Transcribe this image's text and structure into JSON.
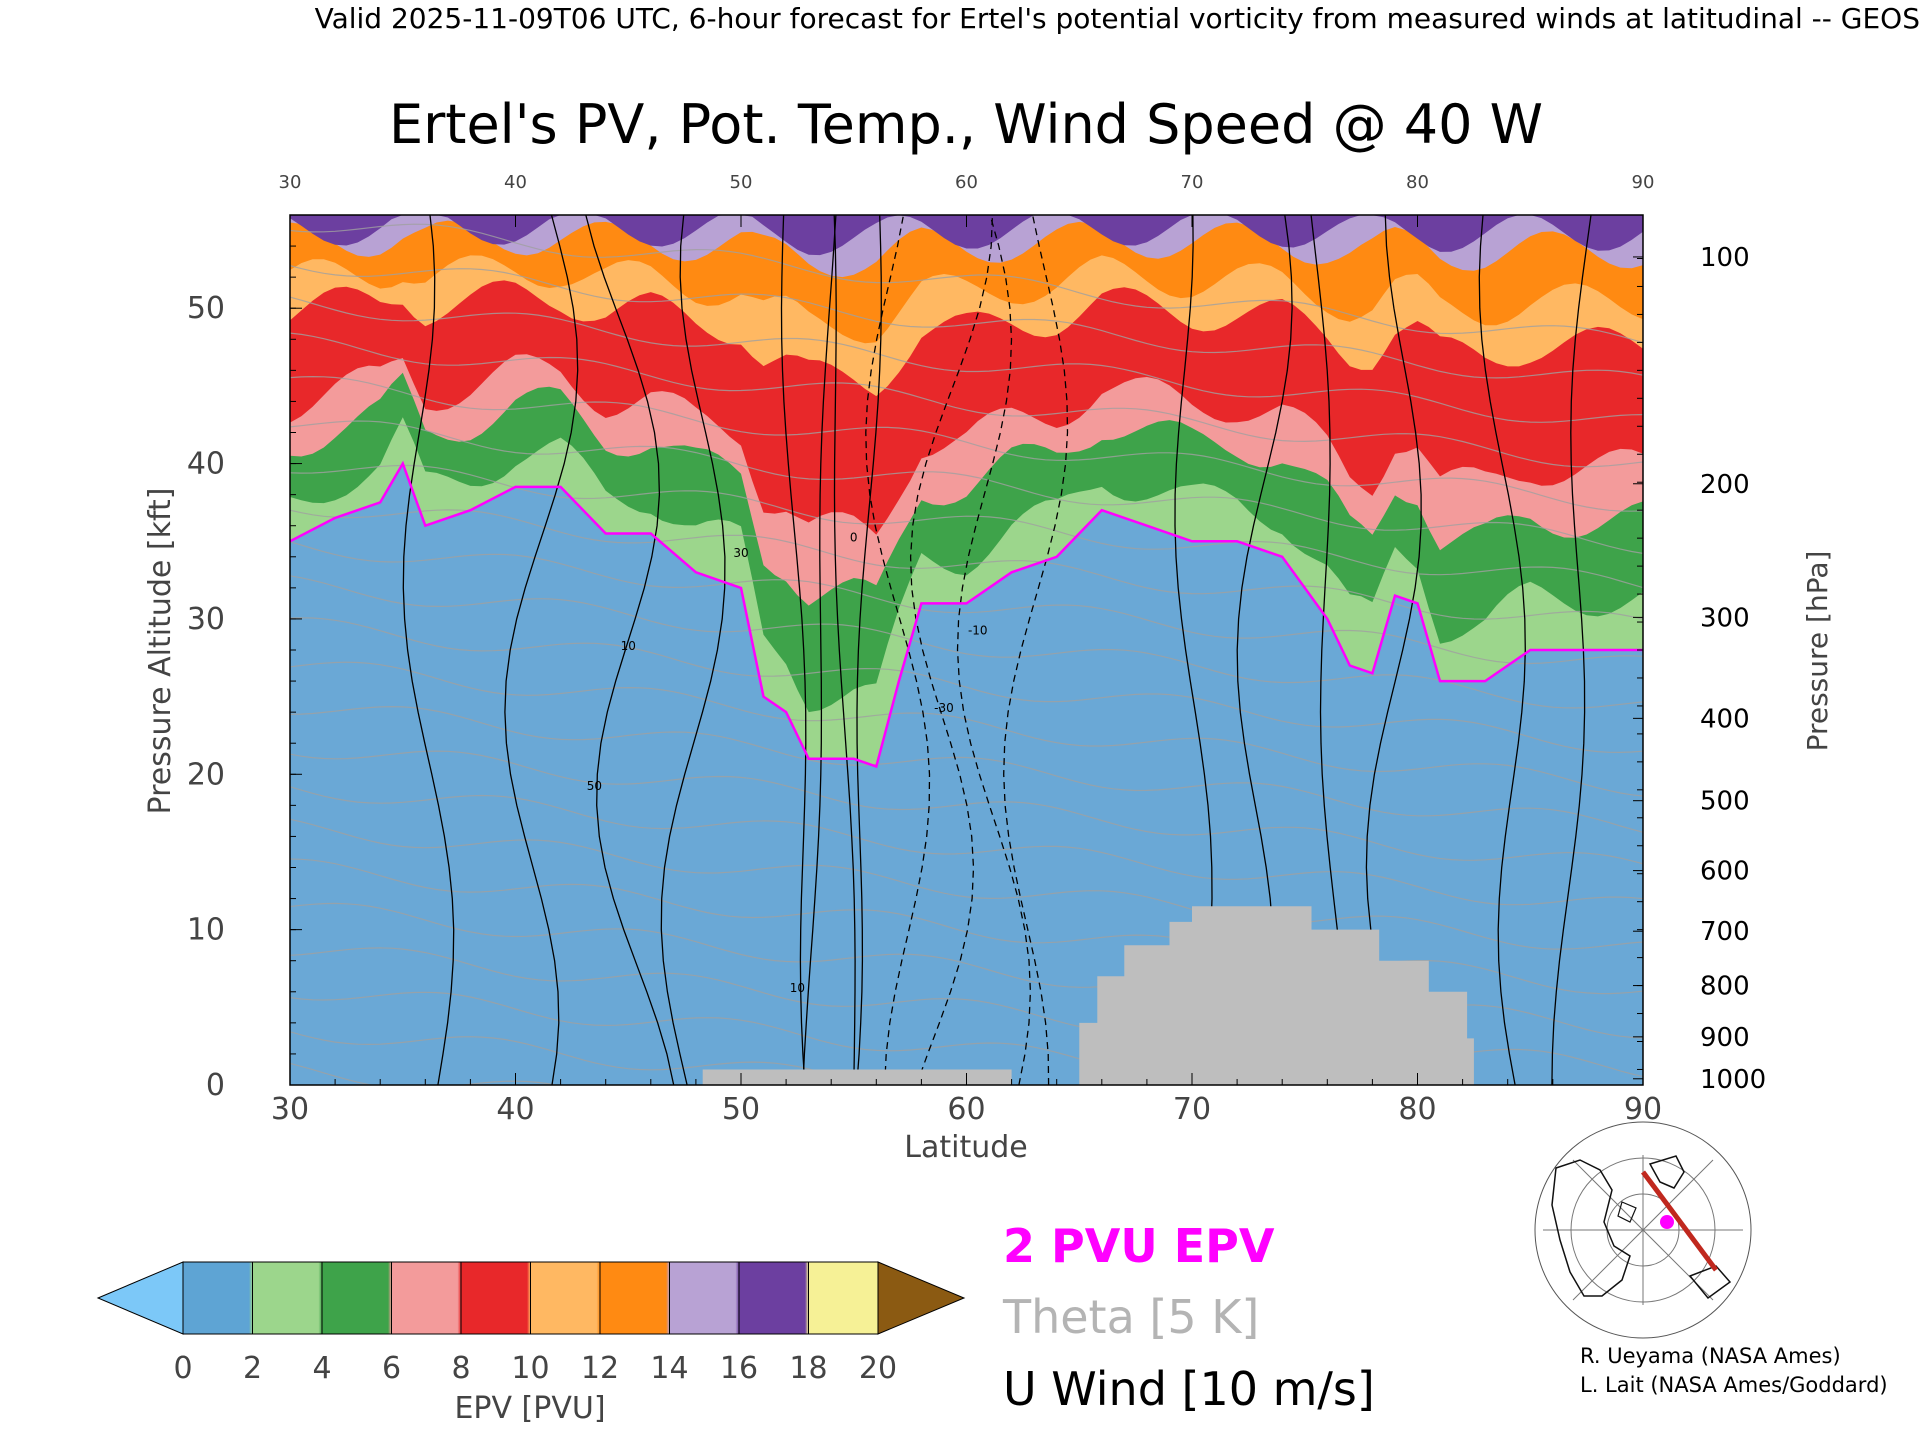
{
  "header": {
    "text": "Valid 2025-11-09T06 UTC, 6-hour forecast for Ertel's potential vorticity from measured winds at latitudinal -- GEOS"
  },
  "chart_data": {
    "type": "heatmap",
    "title": "Ertel's PV, Pot. Temp., Wind Speed @ 40 W",
    "xlabel": "Latitude",
    "ylabel": "Pressure Altitude [kft]",
    "y2label": "Pressure [hPa]",
    "xlim": [
      30,
      90
    ],
    "ylim": [
      0,
      56
    ],
    "x_ticks": [
      "30",
      "40",
      "50",
      "60",
      "70",
      "80",
      "90"
    ],
    "y_ticks": [
      "0",
      "10",
      "20",
      "30",
      "40",
      "50"
    ],
    "pressure_ticks": [
      {
        "hPa": "100",
        "kft": 53.3
      },
      {
        "hPa": "200",
        "kft": 38.7
      },
      {
        "hPa": "300",
        "kft": 30.1
      },
      {
        "hPa": "400",
        "kft": 23.6
      },
      {
        "hPa": "500",
        "kft": 18.3
      },
      {
        "hPa": "600",
        "kft": 13.8
      },
      {
        "hPa": "700",
        "kft": 9.9
      },
      {
        "hPa": "800",
        "kft": 6.4
      },
      {
        "hPa": "900",
        "kft": 3.1
      },
      {
        "hPa": "1000",
        "kft": 0.4
      }
    ],
    "tropopause_2pvu_kft": [
      [
        30,
        35
      ],
      [
        32,
        36.5
      ],
      [
        34,
        37.5
      ],
      [
        35,
        40
      ],
      [
        36,
        36
      ],
      [
        38,
        37
      ],
      [
        40,
        38.5
      ],
      [
        42,
        38.5
      ],
      [
        44,
        35.5
      ],
      [
        46,
        35.5
      ],
      [
        48,
        33
      ],
      [
        50,
        32
      ],
      [
        51,
        25
      ],
      [
        52,
        24
      ],
      [
        53,
        21
      ],
      [
        55,
        21
      ],
      [
        56,
        20.5
      ],
      [
        57,
        26
      ],
      [
        58,
        31
      ],
      [
        60,
        31
      ],
      [
        62,
        33
      ],
      [
        64,
        34
      ],
      [
        66,
        37
      ],
      [
        68,
        36
      ],
      [
        70,
        35
      ],
      [
        72,
        35
      ],
      [
        74,
        34
      ],
      [
        76,
        30
      ],
      [
        77,
        27
      ],
      [
        78,
        26.5
      ],
      [
        79,
        31.5
      ],
      [
        80,
        31
      ],
      [
        81,
        26
      ],
      [
        83,
        26
      ],
      [
        85,
        28
      ],
      [
        90,
        28
      ]
    ],
    "terrain_mask_kft": [
      [
        48.3,
        0
      ],
      [
        48.3,
        1
      ],
      [
        62,
        1
      ],
      [
        62,
        0
      ],
      [
        65,
        0
      ],
      [
        65,
        4
      ],
      [
        65.8,
        4
      ],
      [
        65.8,
        7
      ],
      [
        67,
        7
      ],
      [
        67,
        9
      ],
      [
        69,
        9
      ],
      [
        69,
        10.5
      ],
      [
        70,
        10.5
      ],
      [
        70,
        11.5
      ],
      [
        75.3,
        11.5
      ],
      [
        75.3,
        10
      ],
      [
        78.3,
        10
      ],
      [
        78.3,
        8
      ],
      [
        80.5,
        8
      ],
      [
        80.5,
        6
      ],
      [
        82.2,
        6
      ],
      [
        82.2,
        3
      ],
      [
        82.5,
        3
      ],
      [
        82.5,
        0
      ]
    ],
    "colorbar": {
      "label": "EPV [PVU]",
      "ticks": [
        "0",
        "2",
        "4",
        "6",
        "8",
        "10",
        "12",
        "14",
        "16",
        "18",
        "20"
      ],
      "colors": [
        "#5ea4d4",
        "#9cd68c",
        "#3ea34a",
        "#f39b9b",
        "#e8282a",
        "#ffb862",
        "#ff8a12",
        "#b8a2d4",
        "#6c3fa0",
        "#f6f196"
      ],
      "under_color": "#7cc8f8",
      "over_color": "#8b5a12"
    },
    "legend": {
      "epv": "2 PVU EPV",
      "theta": "Theta [5 K]",
      "wind": "U Wind [10 m/s]"
    },
    "contour_labels": [
      "10",
      "30",
      "50",
      "0",
      "-10",
      "-30"
    ]
  },
  "colors": {
    "pv_2pvu_line": "#ff00ff",
    "theta_line": "#a0a0a0",
    "wind_line": "#000000",
    "terrain": "#bebebe",
    "map_track": "#c0281e",
    "map_marker": "#ff00ff"
  },
  "credits": {
    "line1": "R. Ueyama (NASA Ames)",
    "line2": "L. Lait (NASA Ames/Goddard)"
  },
  "inset_map": {
    "icon": "north-polar-map-icon"
  }
}
